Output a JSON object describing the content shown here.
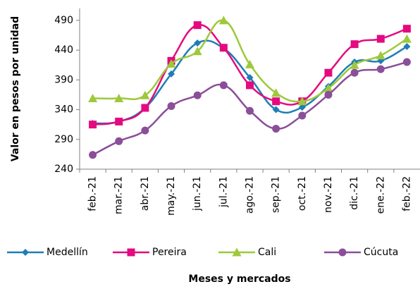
{
  "chart_data": {
    "type": "line",
    "y_label": "Valor en pesos por unidad",
    "x_label": "Meses y mercados",
    "categories": [
      "feb.-21",
      "mar.-21",
      "abr.-21",
      "may.-21",
      "jun.-21",
      "jul.-21",
      "ago.-21",
      "sep.-21",
      "oct.-21",
      "nov.-21",
      "dic.-21",
      "ene.-22",
      "feb.-22"
    ],
    "series": [
      {
        "name": "Medellín",
        "color": "#1f7db5",
        "marker": "diamond",
        "values": [
          317,
          320,
          343,
          400,
          452,
          443,
          394,
          340,
          344,
          379,
          420,
          422,
          446
        ]
      },
      {
        "name": "Pereira",
        "color": "#e5097f",
        "marker": "square",
        "values": [
          315,
          320,
          343,
          422,
          482,
          444,
          381,
          354,
          354,
          402,
          450,
          459,
          476
        ]
      },
      {
        "name": "Cali",
        "color": "#9dc93b",
        "marker": "triangle",
        "values": [
          359,
          359,
          364,
          417,
          438,
          490,
          416,
          368,
          354,
          376,
          415,
          431,
          459
        ]
      },
      {
        "name": "Cúcuta",
        "color": "#8b4e98",
        "marker": "circle",
        "values": [
          264,
          287,
          305,
          346,
          364,
          381,
          338,
          308,
          330,
          365,
          402,
          408,
          420
        ]
      }
    ],
    "ylim": [
      240,
      510
    ],
    "yticks": [
      240,
      290,
      340,
      390,
      440,
      490
    ],
    "grid": false,
    "legend": "bottom"
  }
}
